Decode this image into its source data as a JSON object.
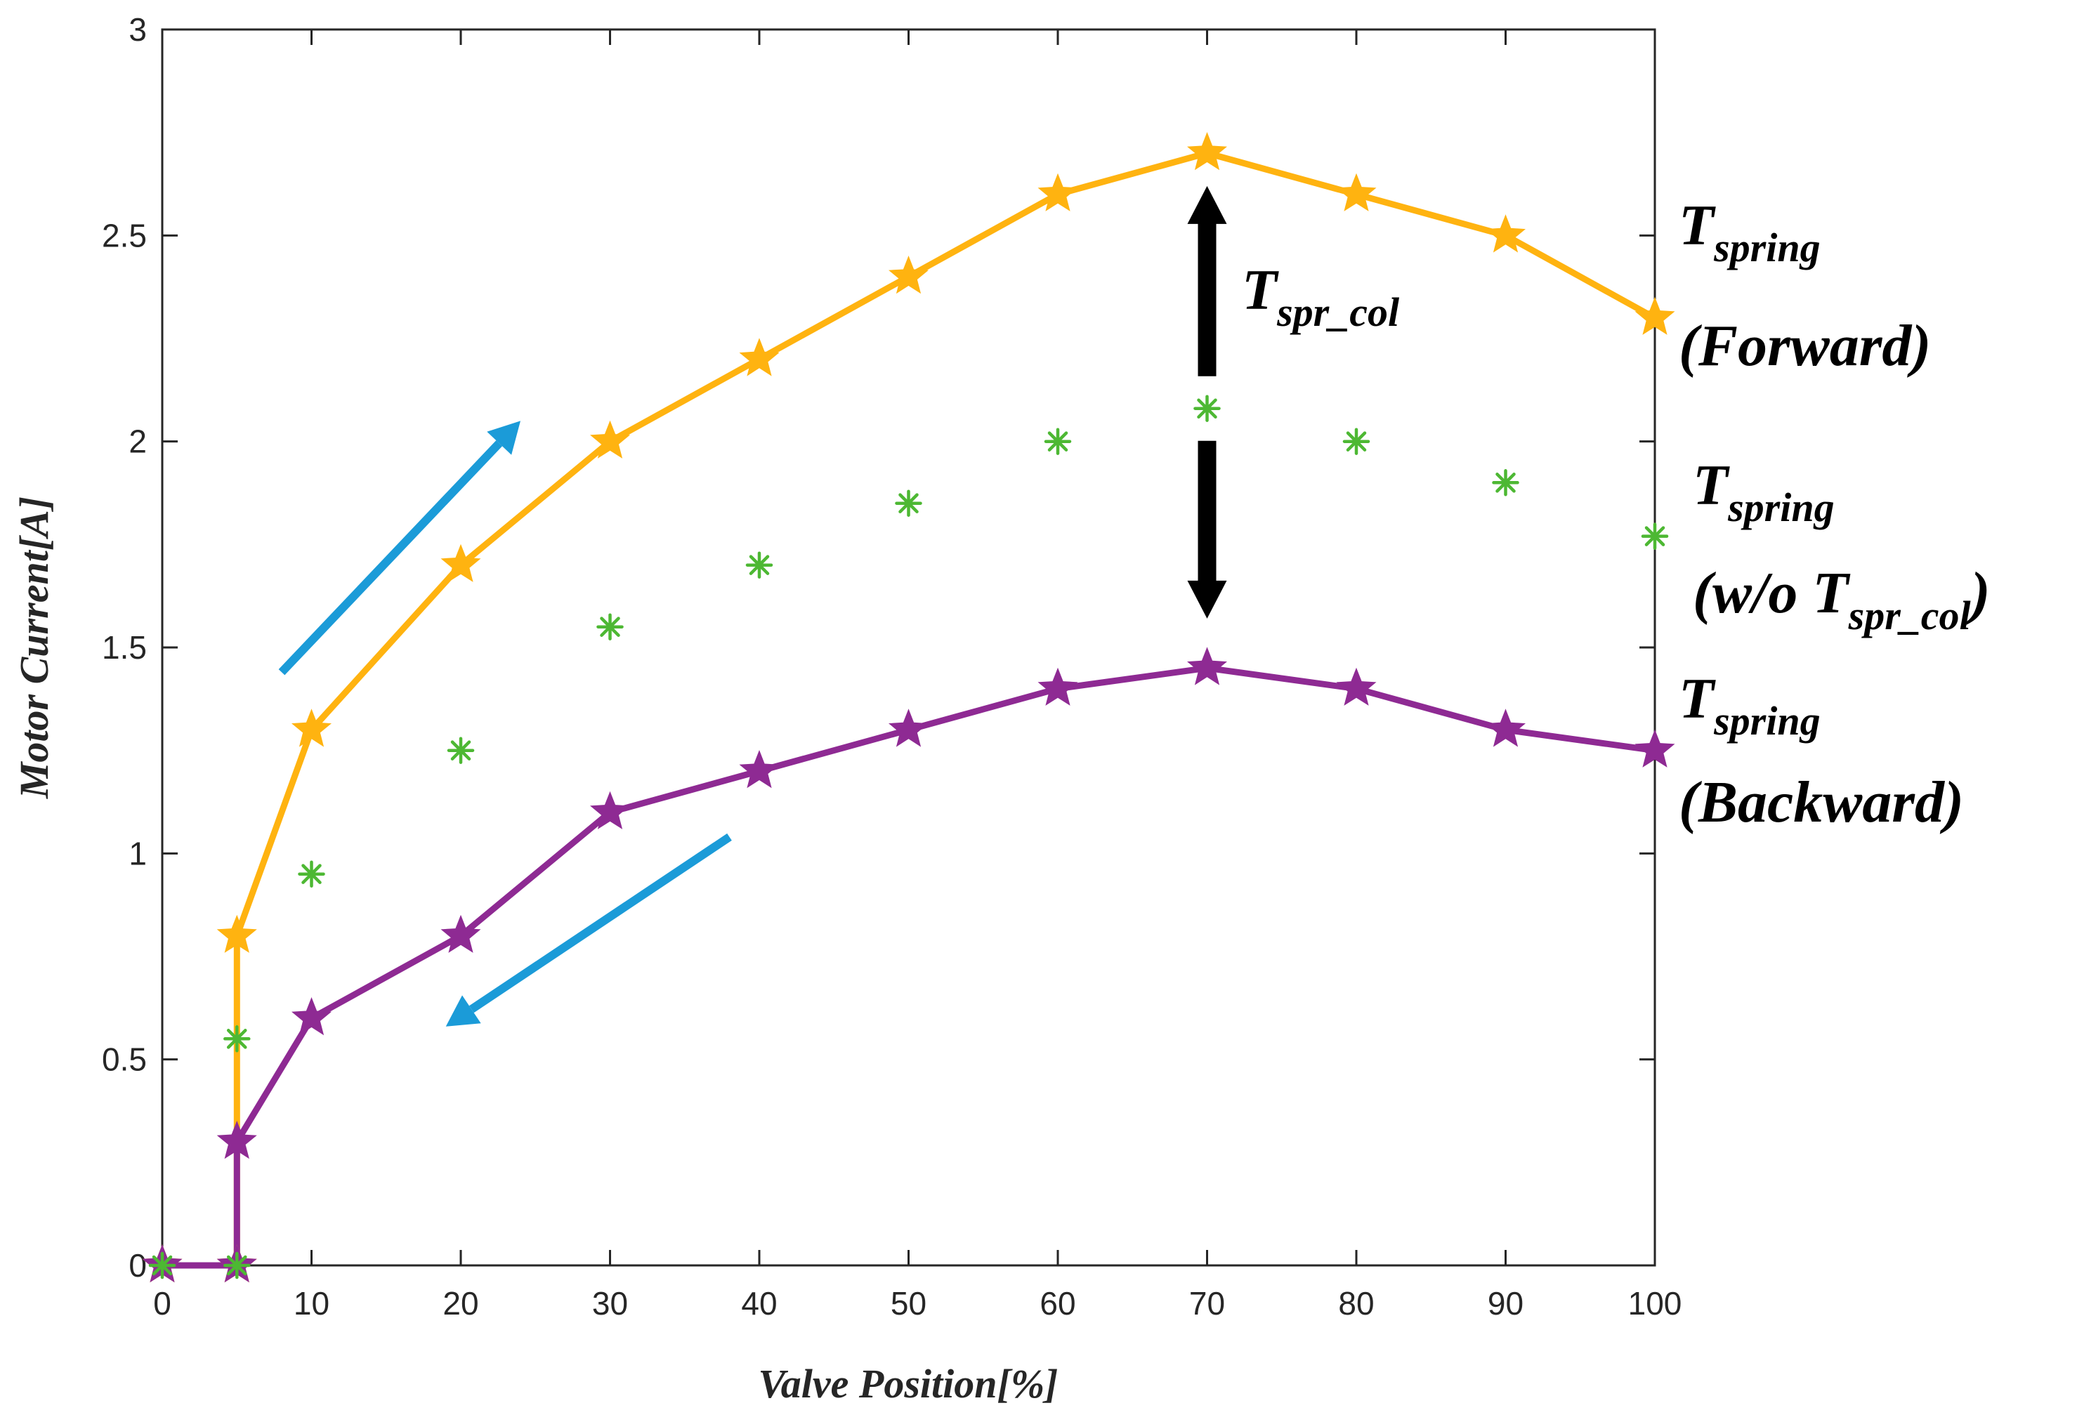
{
  "chart_data": {
    "type": "line",
    "title": "",
    "xlabel": "Valve Position[%]",
    "ylabel": "Motor Current[A]",
    "xlim": [
      0,
      100
    ],
    "ylim": [
      0,
      3
    ],
    "x_ticks": [
      "0",
      "10",
      "20",
      "30",
      "40",
      "50",
      "60",
      "70",
      "80",
      "90",
      "100"
    ],
    "y_ticks": [
      "0",
      "0.5",
      "1",
      "1.5",
      "2",
      "2.5",
      "3"
    ],
    "grid": false,
    "series": [
      {
        "name": "Tspring (Forward)",
        "color": "#FFB310",
        "marker": "star",
        "line": true,
        "x": [
          0,
          5,
          5,
          10,
          20,
          30,
          40,
          50,
          60,
          70,
          80,
          90,
          100
        ],
        "y": [
          0,
          0,
          0.8,
          1.3,
          1.7,
          2.0,
          2.2,
          2.4,
          2.6,
          2.7,
          2.6,
          2.5,
          2.3
        ]
      },
      {
        "name": "Tspring (w/o Tspr_col)",
        "color": "#4DB833",
        "marker": "asterisk",
        "line": false,
        "x": [
          0,
          5,
          5,
          10,
          20,
          30,
          40,
          50,
          60,
          70,
          80,
          90,
          100
        ],
        "y": [
          0,
          0,
          0.55,
          0.95,
          1.25,
          1.55,
          1.7,
          1.85,
          2.0,
          2.08,
          2.0,
          1.9,
          1.77
        ]
      },
      {
        "name": "Tspring (Backward)",
        "color": "#8E2A93",
        "marker": "star",
        "line": true,
        "x": [
          0,
          5,
          5,
          10,
          20,
          30,
          40,
          50,
          60,
          70,
          80,
          90,
          100
        ],
        "y": [
          0,
          0,
          0.3,
          0.6,
          0.8,
          1.1,
          1.2,
          1.3,
          1.4,
          1.45,
          1.4,
          1.3,
          1.25
        ]
      }
    ],
    "annotations": {
      "arrow_color": "#1B9BD8",
      "gap_arrow_color": "#000000",
      "gap_arrow_x": 70,
      "gap_arrow_y": [
        1.57,
        2.62
      ],
      "forward_arrow": {
        "x": [
          8,
          24
        ],
        "y": [
          1.44,
          2.05
        ]
      },
      "backward_arrow": {
        "x": [
          38,
          19
        ],
        "y": [
          1.04,
          0.58
        ]
      },
      "gap_label": {
        "main": "T",
        "sub": "spr_col"
      },
      "forward_label": {
        "main": "T",
        "sub": "spring",
        "line2": "(Forward)"
      },
      "without_label": {
        "main": "T",
        "sub": "spring",
        "line2_prefix": "(w/o T",
        "line2_sub": "spr_col",
        "line2_suffix": ")"
      },
      "backward_label": {
        "main": "T",
        "sub": "spring",
        "line2": "(Backward)"
      }
    }
  }
}
